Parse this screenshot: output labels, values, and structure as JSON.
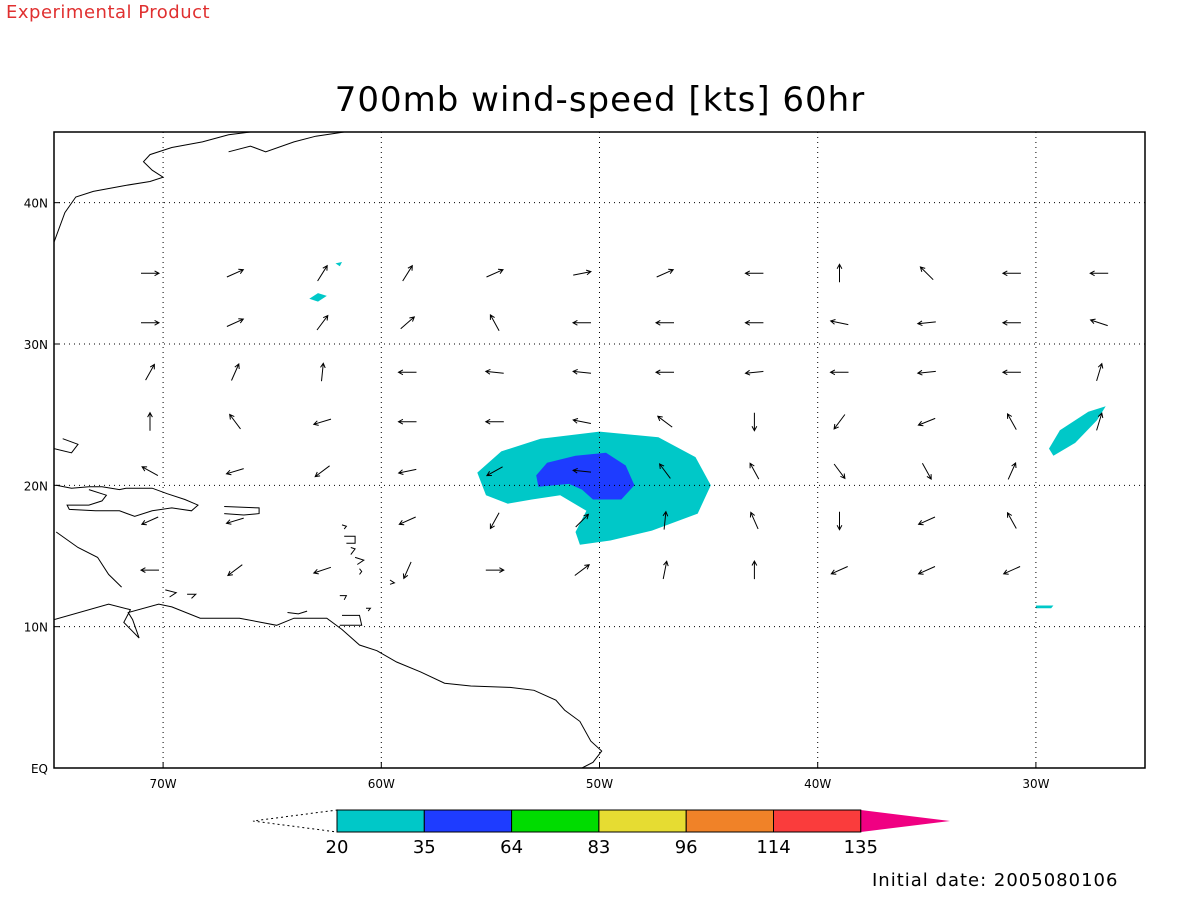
{
  "banner": {
    "text": "Experimental Product",
    "color": "#e03030"
  },
  "title": "700mb wind-speed [kts] 60hr",
  "initial_date": "Initial date: 2005080106",
  "map": {
    "lon_range": [
      -75,
      -25
    ],
    "lat_range": [
      0,
      45
    ],
    "lon_ticks": [
      {
        "lon": -70,
        "label": "70W"
      },
      {
        "lon": -60,
        "label": "60W"
      },
      {
        "lon": -50,
        "label": "50W"
      },
      {
        "lon": -40,
        "label": "40W"
      },
      {
        "lon": -30,
        "label": "30W"
      }
    ],
    "lat_ticks": [
      {
        "lat": 0,
        "label": "EQ"
      },
      {
        "lat": 10,
        "label": "10N"
      },
      {
        "lat": 20,
        "label": "20N"
      },
      {
        "lat": 30,
        "label": "30N"
      },
      {
        "lat": 40,
        "label": "40N"
      }
    ],
    "grid": "dotted",
    "regions": [
      {
        "level": "20-35",
        "color": "#00c8c8",
        "lonlat": [
          [
            -55.6,
            20.9
          ],
          [
            -54.5,
            22.4
          ],
          [
            -52.7,
            23.3
          ],
          [
            -50,
            23.8
          ],
          [
            -47.3,
            23.4
          ],
          [
            -45.6,
            22
          ],
          [
            -44.9,
            20
          ],
          [
            -45.5,
            18
          ],
          [
            -47.6,
            16.8
          ],
          [
            -49.5,
            16.1
          ],
          [
            -50.9,
            15.8
          ],
          [
            -51.1,
            16.7
          ],
          [
            -50.6,
            18.2
          ],
          [
            -51.8,
            19.3
          ],
          [
            -53.1,
            19
          ],
          [
            -54.2,
            18.7
          ],
          [
            -55.2,
            19.3
          ]
        ]
      },
      {
        "level": "35-64",
        "color": "#1e3cff",
        "lonlat": [
          [
            -52.9,
            20.7
          ],
          [
            -52.4,
            21.6
          ],
          [
            -51.1,
            22.1
          ],
          [
            -49.7,
            22.3
          ],
          [
            -48.8,
            21.4
          ],
          [
            -48.4,
            20
          ],
          [
            -49,
            19
          ],
          [
            -50.3,
            19
          ],
          [
            -50.8,
            19.7
          ],
          [
            -51.4,
            20.1
          ],
          [
            -52.8,
            19.9
          ]
        ]
      },
      {
        "level": "20-35",
        "color": "#00c8c8",
        "lonlat": [
          [
            -29.2,
            22.1
          ],
          [
            -28.2,
            23
          ],
          [
            -27.2,
            24.6
          ],
          [
            -26.8,
            25.6
          ],
          [
            -27.6,
            25.2
          ],
          [
            -28.9,
            23.9
          ],
          [
            -29.4,
            22.6
          ]
        ]
      },
      {
        "level": "20-35",
        "color": "#00c8c8",
        "lonlat": [
          [
            -63.3,
            33.2
          ],
          [
            -62.9,
            33.6
          ],
          [
            -62.5,
            33.4
          ],
          [
            -62.9,
            33
          ]
        ]
      },
      {
        "level": "20-35",
        "color": "#00c8c8",
        "lonlat": [
          [
            -30,
            11.5
          ],
          [
            -29.2,
            11.5
          ],
          [
            -29.3,
            11.3
          ],
          [
            -30,
            11.3
          ]
        ]
      },
      {
        "level": "20-35",
        "color": "#00c8c8",
        "lonlat": [
          [
            -62.1,
            35.7
          ],
          [
            -61.8,
            35.8
          ],
          [
            -61.9,
            35.5
          ]
        ]
      }
    ],
    "wind_vectors": [
      {
        "lon": -70.6,
        "lat": 35,
        "u": 1,
        "v": 0
      },
      {
        "lon": -66.7,
        "lat": 35,
        "u": 0.9,
        "v": 0.4
      },
      {
        "lon": -62.7,
        "lat": 35,
        "u": 0.5,
        "v": 0.8
      },
      {
        "lon": -58.8,
        "lat": 35,
        "u": 0.5,
        "v": 0.8
      },
      {
        "lon": -54.8,
        "lat": 35,
        "u": 0.9,
        "v": 0.4
      },
      {
        "lon": -50.8,
        "lat": 35,
        "u": 1,
        "v": 0.2
      },
      {
        "lon": -47,
        "lat": 35,
        "u": 0.9,
        "v": 0.4
      },
      {
        "lon": -42.9,
        "lat": 35,
        "u": -1,
        "v": 0
      },
      {
        "lon": -39,
        "lat": 35,
        "u": 0,
        "v": 1
      },
      {
        "lon": -35,
        "lat": 35,
        "u": -0.7,
        "v": 0.7
      },
      {
        "lon": -31.1,
        "lat": 35,
        "u": -1,
        "v": 0
      },
      {
        "lon": -27.1,
        "lat": 35,
        "u": -1,
        "v": 0
      },
      {
        "lon": -70.6,
        "lat": 31.5,
        "u": 1,
        "v": 0
      },
      {
        "lon": -66.7,
        "lat": 31.5,
        "u": 0.9,
        "v": 0.4
      },
      {
        "lon": -62.7,
        "lat": 31.5,
        "u": 0.6,
        "v": 0.8
      },
      {
        "lon": -58.8,
        "lat": 31.5,
        "u": 0.7,
        "v": 0.6
      },
      {
        "lon": -54.8,
        "lat": 31.5,
        "u": -0.5,
        "v": 0.9
      },
      {
        "lon": -50.8,
        "lat": 31.5,
        "u": -1,
        "v": 0
      },
      {
        "lon": -47,
        "lat": 31.5,
        "u": -1,
        "v": 0
      },
      {
        "lon": -42.9,
        "lat": 31.5,
        "u": -1,
        "v": 0
      },
      {
        "lon": -39,
        "lat": 31.5,
        "u": -1,
        "v": 0.2
      },
      {
        "lon": -35,
        "lat": 31.5,
        "u": -1,
        "v": -0.1
      },
      {
        "lon": -31.1,
        "lat": 31.5,
        "u": -1,
        "v": 0
      },
      {
        "lon": -27.1,
        "lat": 31.5,
        "u": -0.9,
        "v": 0.3
      },
      {
        "lon": -70.6,
        "lat": 28,
        "u": 0.5,
        "v": 0.9
      },
      {
        "lon": -66.7,
        "lat": 28,
        "u": 0.4,
        "v": 0.9
      },
      {
        "lon": -62.7,
        "lat": 28,
        "u": 0.1,
        "v": 1
      },
      {
        "lon": -58.8,
        "lat": 28,
        "u": -1,
        "v": 0
      },
      {
        "lon": -54.8,
        "lat": 28,
        "u": -1,
        "v": 0.1
      },
      {
        "lon": -50.8,
        "lat": 28,
        "u": -1,
        "v": 0.1
      },
      {
        "lon": -47,
        "lat": 28,
        "u": -1,
        "v": 0
      },
      {
        "lon": -42.9,
        "lat": 28,
        "u": -1,
        "v": -0.1
      },
      {
        "lon": -39,
        "lat": 28,
        "u": -1,
        "v": 0
      },
      {
        "lon": -35,
        "lat": 28,
        "u": -1,
        "v": -0.1
      },
      {
        "lon": -31.1,
        "lat": 28,
        "u": -1,
        "v": 0
      },
      {
        "lon": -27.1,
        "lat": 28,
        "u": 0.3,
        "v": 1
      },
      {
        "lon": -70.6,
        "lat": 24.5,
        "u": 0,
        "v": 1
      },
      {
        "lon": -66.7,
        "lat": 24.5,
        "u": -0.6,
        "v": 0.8
      },
      {
        "lon": -62.7,
        "lat": 24.5,
        "u": -1,
        "v": -0.3
      },
      {
        "lon": -58.8,
        "lat": 24.5,
        "u": -1,
        "v": 0
      },
      {
        "lon": -54.8,
        "lat": 24.5,
        "u": -1,
        "v": 0
      },
      {
        "lon": -50.8,
        "lat": 24.5,
        "u": -1,
        "v": 0.2
      },
      {
        "lon": -47,
        "lat": 24.5,
        "u": -0.8,
        "v": 0.6
      },
      {
        "lon": -42.9,
        "lat": 24.5,
        "u": 0,
        "v": -1
      },
      {
        "lon": -39,
        "lat": 24.5,
        "u": -0.6,
        "v": -0.8
      },
      {
        "lon": -35,
        "lat": 24.5,
        "u": -1,
        "v": -0.4
      },
      {
        "lon": -31.1,
        "lat": 24.5,
        "u": -0.5,
        "v": 0.9
      },
      {
        "lon": -27.1,
        "lat": 24.5,
        "u": 0.3,
        "v": 1
      },
      {
        "lon": -70.6,
        "lat": 21,
        "u": -0.9,
        "v": 0.5
      },
      {
        "lon": -66.7,
        "lat": 21,
        "u": -1,
        "v": -0.3
      },
      {
        "lon": -62.7,
        "lat": 21,
        "u": -0.8,
        "v": -0.6
      },
      {
        "lon": -58.8,
        "lat": 21,
        "u": -1,
        "v": -0.2
      },
      {
        "lon": -54.8,
        "lat": 21,
        "u": -0.9,
        "v": -0.5
      },
      {
        "lon": -50.8,
        "lat": 21,
        "u": -1,
        "v": 0.1
      },
      {
        "lon": -47,
        "lat": 21,
        "u": -0.6,
        "v": 0.8
      },
      {
        "lon": -42.9,
        "lat": 21,
        "u": -0.5,
        "v": 0.9
      },
      {
        "lon": -39,
        "lat": 21,
        "u": 0.6,
        "v": -0.8
      },
      {
        "lon": -35,
        "lat": 21,
        "u": 0.5,
        "v": -0.9
      },
      {
        "lon": -31.1,
        "lat": 21,
        "u": 0.4,
        "v": 0.9
      },
      {
        "lon": -70.6,
        "lat": 17.5,
        "u": -0.9,
        "v": -0.4
      },
      {
        "lon": -66.7,
        "lat": 17.5,
        "u": -1,
        "v": -0.3
      },
      {
        "lon": -58.8,
        "lat": 17.5,
        "u": -0.9,
        "v": -0.4
      },
      {
        "lon": -54.8,
        "lat": 17.5,
        "u": -0.5,
        "v": -0.9
      },
      {
        "lon": -50.8,
        "lat": 17.5,
        "u": 0.7,
        "v": 0.7
      },
      {
        "lon": -47,
        "lat": 17.5,
        "u": 0.1,
        "v": 1
      },
      {
        "lon": -42.9,
        "lat": 17.5,
        "u": -0.4,
        "v": 0.9
      },
      {
        "lon": -39,
        "lat": 17.5,
        "u": 0,
        "v": -1
      },
      {
        "lon": -35,
        "lat": 17.5,
        "u": -0.9,
        "v": -0.4
      },
      {
        "lon": -31.1,
        "lat": 17.5,
        "u": -0.5,
        "v": 0.9
      },
      {
        "lon": -70.6,
        "lat": 14,
        "u": -1,
        "v": 0
      },
      {
        "lon": -66.7,
        "lat": 14,
        "u": -0.8,
        "v": -0.6
      },
      {
        "lon": -62.7,
        "lat": 14,
        "u": -0.9,
        "v": -0.3
      },
      {
        "lon": -58.8,
        "lat": 14,
        "u": -0.4,
        "v": -0.9
      },
      {
        "lon": -54.8,
        "lat": 14,
        "u": 1,
        "v": 0
      },
      {
        "lon": -50.8,
        "lat": 14,
        "u": 0.8,
        "v": 0.6
      },
      {
        "lon": -47,
        "lat": 14,
        "u": 0.2,
        "v": 1
      },
      {
        "lon": -42.9,
        "lat": 14,
        "u": 0,
        "v": 1
      },
      {
        "lon": -39,
        "lat": 14,
        "u": -0.9,
        "v": -0.4
      },
      {
        "lon": -35,
        "lat": 14,
        "u": -0.9,
        "v": -0.4
      },
      {
        "lon": -31.1,
        "lat": 14,
        "u": -0.9,
        "v": -0.4
      }
    ],
    "coastlines": [
      [
        [
          -75,
          10.5
        ],
        [
          -72.5,
          11.6
        ],
        [
          -71.5,
          11.2
        ],
        [
          -71.8,
          10.3
        ],
        [
          -71.1,
          9.2
        ],
        [
          -71.4,
          10.5
        ],
        [
          -71.6,
          11
        ],
        [
          -70.2,
          11.6
        ],
        [
          -69.6,
          11.4
        ],
        [
          -68.3,
          10.6
        ],
        [
          -66.5,
          10.6
        ],
        [
          -64.8,
          10.1
        ],
        [
          -64,
          10.6
        ],
        [
          -62.5,
          10.6
        ],
        [
          -61.8,
          9.8
        ],
        [
          -61,
          8.7
        ],
        [
          -60.2,
          8.3
        ],
        [
          -59.3,
          7.5
        ],
        [
          -58.2,
          6.8
        ],
        [
          -57.1,
          6
        ],
        [
          -55.9,
          5.8
        ],
        [
          -54.1,
          5.7
        ],
        [
          -53,
          5.5
        ],
        [
          -52,
          4.8
        ],
        [
          -51.6,
          4.1
        ],
        [
          -50.9,
          3.3
        ],
        [
          -50.4,
          1.9
        ],
        [
          -49.9,
          1.2
        ],
        [
          -50.3,
          0.4
        ],
        [
          -50.8,
          0
        ]
      ],
      [
        [
          -75,
          37.2
        ],
        [
          -74.5,
          39.3
        ],
        [
          -74,
          40.4
        ],
        [
          -73.2,
          40.8
        ],
        [
          -71.8,
          41.2
        ],
        [
          -70.6,
          41.5
        ],
        [
          -70,
          41.8
        ],
        [
          -70.5,
          42.3
        ],
        [
          -70.9,
          42.9
        ],
        [
          -70.6,
          43.4
        ],
        [
          -69.6,
          43.9
        ],
        [
          -68.2,
          44.3
        ],
        [
          -67,
          44.8
        ],
        [
          -66,
          45
        ]
      ],
      [
        [
          -67,
          43.6
        ],
        [
          -66,
          44
        ],
        [
          -65.3,
          43.6
        ],
        [
          -64,
          44.3
        ],
        [
          -63,
          44.7
        ],
        [
          -61.7,
          45
        ]
      ],
      [
        [
          -74.9,
          20
        ],
        [
          -74.2,
          19.8
        ],
        [
          -73.4,
          19.9
        ],
        [
          -72.8,
          19.9
        ],
        [
          -72,
          19.7
        ],
        [
          -71.7,
          19.8
        ],
        [
          -70.5,
          19.8
        ],
        [
          -69.8,
          19.4
        ],
        [
          -69,
          19
        ],
        [
          -68.4,
          18.6
        ],
        [
          -68.7,
          18.2
        ],
        [
          -69.6,
          18.4
        ],
        [
          -70.5,
          18.2
        ],
        [
          -71.3,
          17.8
        ],
        [
          -72,
          18.2
        ],
        [
          -73.1,
          18.2
        ],
        [
          -74.3,
          18.3
        ],
        [
          -74.4,
          18.6
        ],
        [
          -73.4,
          18.6
        ],
        [
          -72.8,
          18.9
        ],
        [
          -72.6,
          19.3
        ],
        [
          -73.4,
          19.7
        ]
      ],
      [
        [
          -75,
          22.6
        ],
        [
          -74.2,
          22.3
        ],
        [
          -73.9,
          22.9
        ],
        [
          -74.6,
          23.3
        ]
      ],
      [
        [
          -67.2,
          18.5
        ],
        [
          -65.6,
          18.4
        ],
        [
          -65.6,
          18
        ],
        [
          -66.3,
          17.9
        ],
        [
          -67.2,
          18
        ]
      ],
      [
        [
          -61.8,
          17.2
        ],
        [
          -61.6,
          17.1
        ],
        [
          -61.7,
          16.9
        ]
      ],
      [
        [
          -61.7,
          16.4
        ],
        [
          -61.2,
          16.4
        ],
        [
          -61.2,
          15.9
        ],
        [
          -61.6,
          15.9
        ]
      ],
      [
        [
          -61.4,
          15.6
        ],
        [
          -61.2,
          15.5
        ],
        [
          -61.4,
          15.1
        ]
      ],
      [
        [
          -61.2,
          14.9
        ],
        [
          -60.8,
          14.7
        ],
        [
          -61.1,
          14.4
        ]
      ],
      [
        [
          -61,
          14.1
        ],
        [
          -60.9,
          13.9
        ],
        [
          -61,
          13.7
        ]
      ],
      [
        [
          -59.6,
          13.3
        ],
        [
          -59.4,
          13.1
        ],
        [
          -59.6,
          13
        ]
      ],
      [
        [
          -61.9,
          12.2
        ],
        [
          -61.6,
          12.2
        ],
        [
          -61.7,
          11.9
        ]
      ],
      [
        [
          -61.8,
          10.8
        ],
        [
          -61,
          10.8
        ],
        [
          -60.9,
          10.1
        ],
        [
          -61.9,
          10.1
        ]
      ],
      [
        [
          -60.7,
          11.3
        ],
        [
          -60.5,
          11.3
        ],
        [
          -60.6,
          11.1
        ]
      ],
      [
        [
          -74.9,
          16.7
        ],
        [
          -73.9,
          15.6
        ],
        [
          -73,
          14.9
        ],
        [
          -72.5,
          13.7
        ],
        [
          -71.9,
          12.8
        ]
      ],
      [
        [
          -63.4,
          11.1
        ],
        [
          -63.8,
          10.9
        ],
        [
          -64.3,
          11
        ]
      ],
      [
        [
          -69.9,
          12.6
        ],
        [
          -69.4,
          12.4
        ],
        [
          -69.7,
          12.1
        ]
      ],
      [
        [
          -68.9,
          12.3
        ],
        [
          -68.5,
          12.3
        ],
        [
          -68.7,
          12.0
        ]
      ]
    ],
    "tick_marks": {
      "lon_ticks_count": 5,
      "lat_ticks_count": 5
    }
  },
  "colorbar": {
    "labels": [
      "20",
      "35",
      "64",
      "83",
      "96",
      "114",
      "135"
    ],
    "colors": [
      "#00c8c8",
      "#1e3cff",
      "#00dc00",
      "#e6dc32",
      "#f08228",
      "#fa3c3c",
      "#f00082"
    ]
  }
}
